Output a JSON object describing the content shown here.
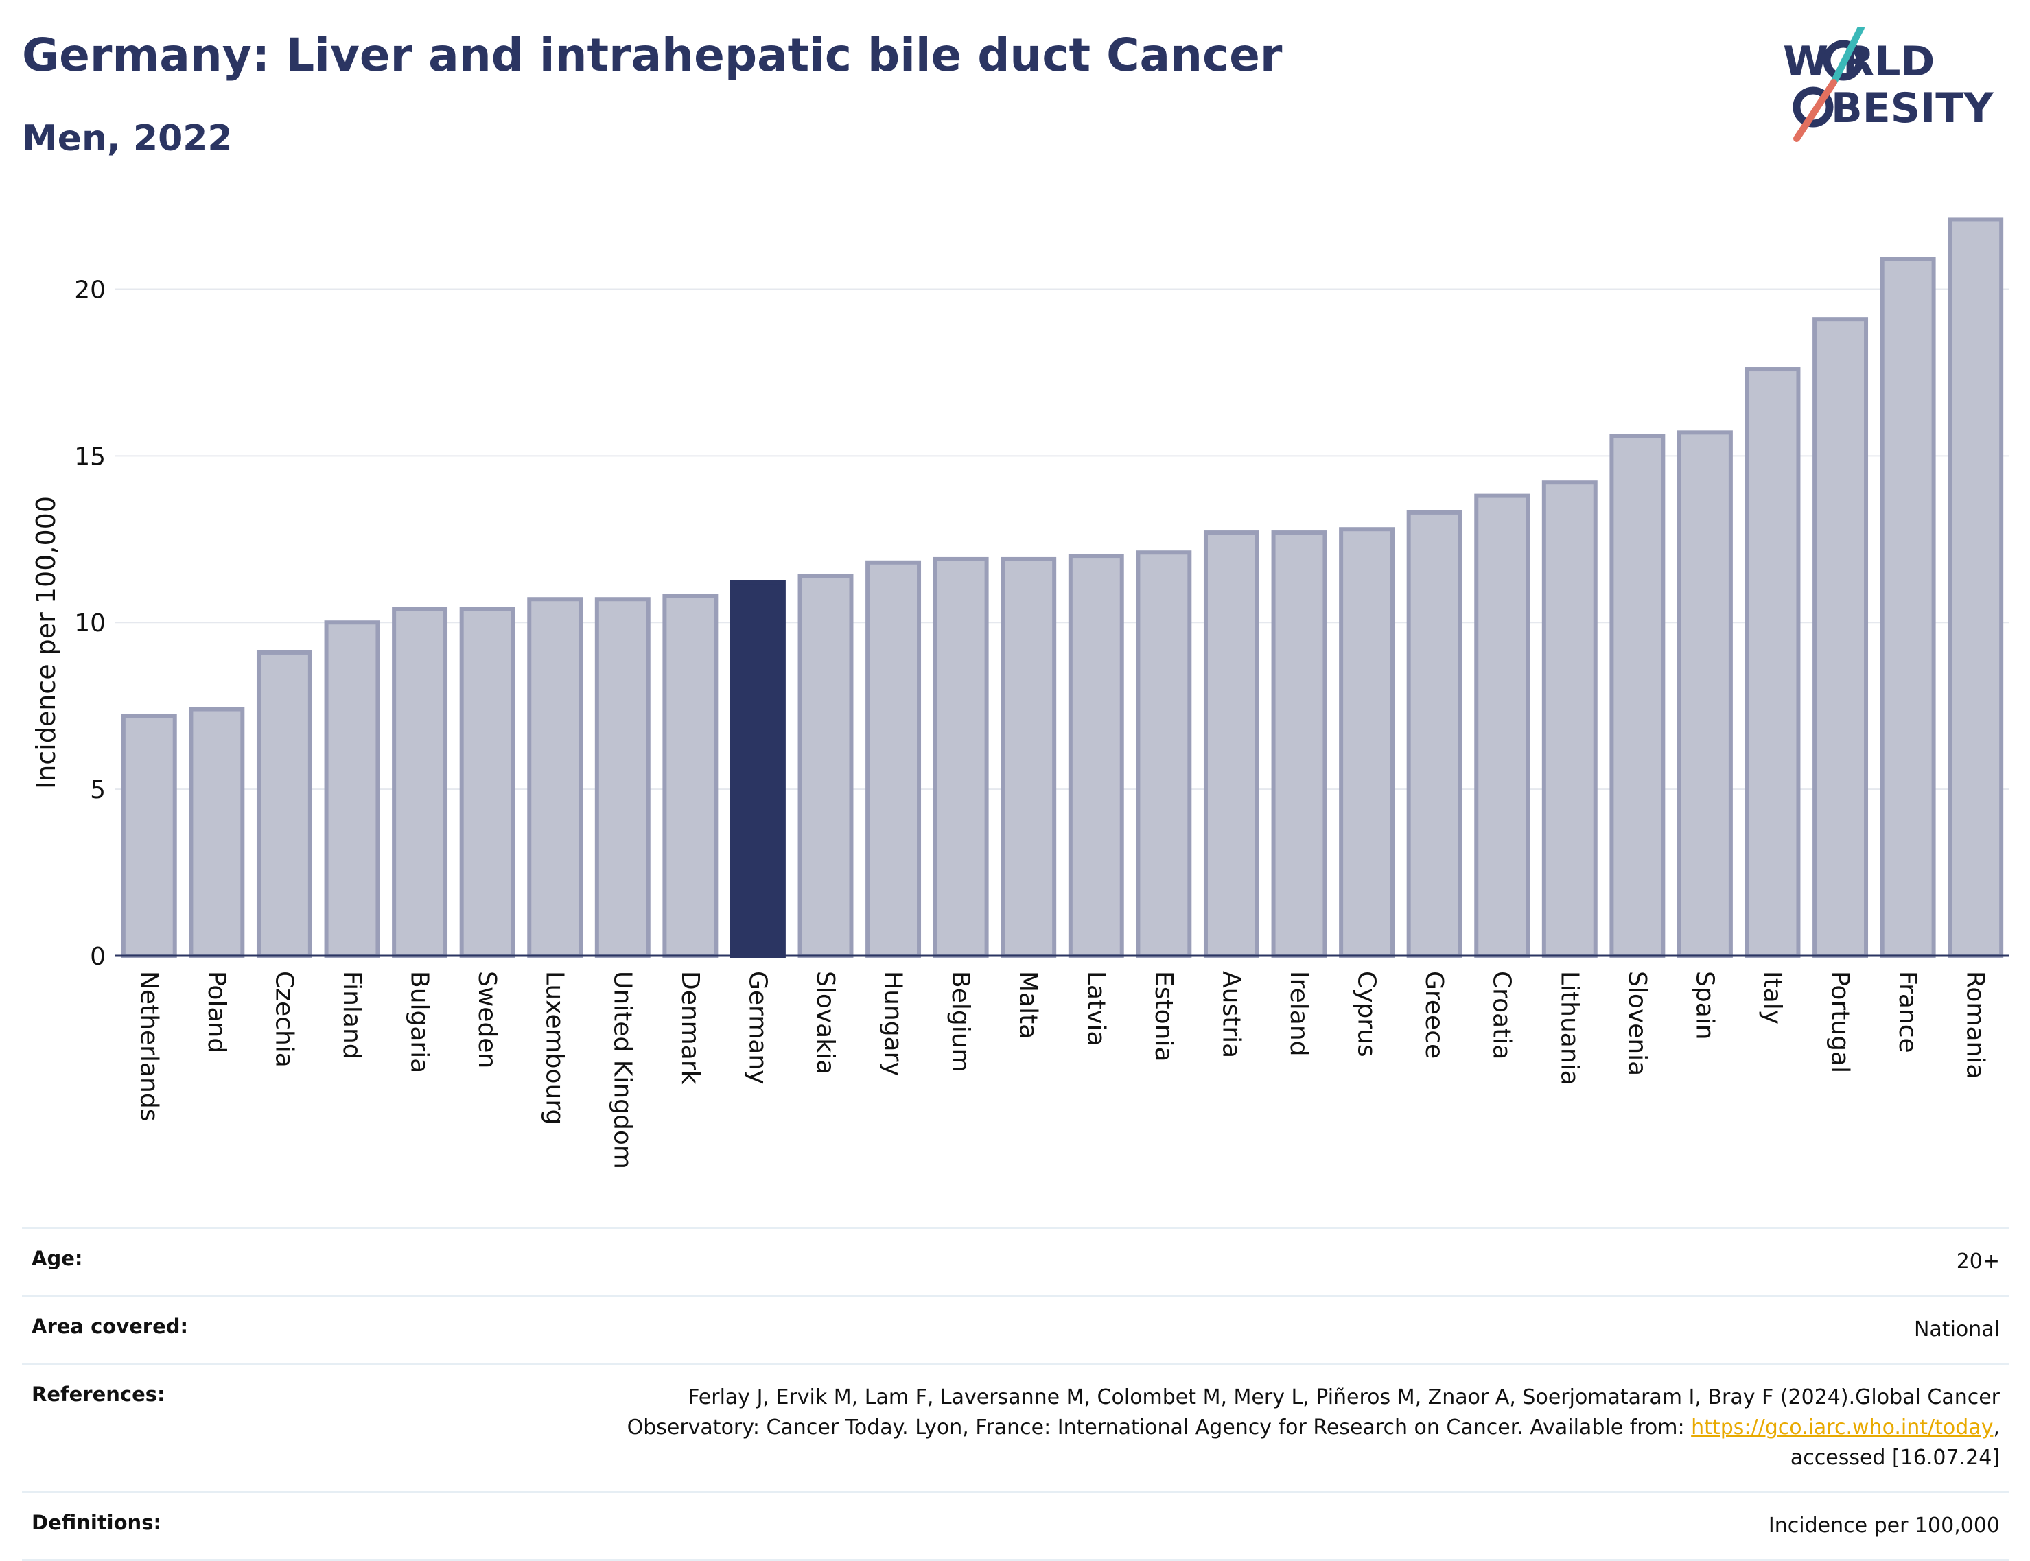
{
  "header": {
    "title": "Germany: Liver and intrahepatic bile duct Cancer",
    "subtitle": "Men, 2022"
  },
  "logo": {
    "line1": "W RLD",
    "line2": "BESITY",
    "colors": {
      "text": "#2b3562",
      "slash_top": "#3ab8b8",
      "slash_bottom": "#e2705f"
    }
  },
  "chart_data": {
    "type": "bar",
    "ylabel": "Incidence per 100,000",
    "ylim": [
      0,
      22.5
    ],
    "yticks": [
      0,
      5,
      10,
      15,
      20
    ],
    "grid": true,
    "highlight": "Germany",
    "colors": {
      "bar": "#bfc2d0",
      "bar_border": "#9a9eb8",
      "highlight": "#2b3562"
    },
    "categories": [
      "Netherlands",
      "Poland",
      "Czechia",
      "Finland",
      "Bulgaria",
      "Sweden",
      "Luxembourg",
      "United Kingdom",
      "Denmark",
      "Germany",
      "Slovakia",
      "Hungary",
      "Belgium",
      "Malta",
      "Latvia",
      "Estonia",
      "Austria",
      "Ireland",
      "Cyprus",
      "Greece",
      "Croatia",
      "Lithuania",
      "Slovenia",
      "Spain",
      "Italy",
      "Portugal",
      "France",
      "Romania"
    ],
    "values": [
      7.2,
      7.4,
      9.1,
      10.0,
      10.4,
      10.4,
      10.7,
      10.7,
      10.8,
      11.2,
      11.4,
      11.8,
      11.9,
      11.9,
      12.0,
      12.1,
      12.7,
      12.7,
      12.8,
      13.3,
      13.8,
      14.2,
      15.6,
      15.7,
      17.6,
      19.1,
      20.9,
      22.1
    ]
  },
  "info": {
    "age": {
      "label": "Age:",
      "value": "20+"
    },
    "area": {
      "label": "Area covered:",
      "value": "National"
    },
    "references": {
      "label": "References:",
      "text1": "Ferlay J, Ervik M, Lam F, Laversanne M, Colombet M, Mery L, Piñeros M, Znaor A, Soerjomataram I, Bray F (2024).Global Cancer",
      "text2": "Observatory: Cancer Today. Lyon, France: International Agency for Research on Cancer. Available from: ",
      "link": "https://gco.iarc.who.int/today",
      "text3": ",",
      "text4": "accessed [16.07.24]"
    },
    "definitions": {
      "label": "Definitions:",
      "value": "Incidence per 100,000"
    }
  }
}
